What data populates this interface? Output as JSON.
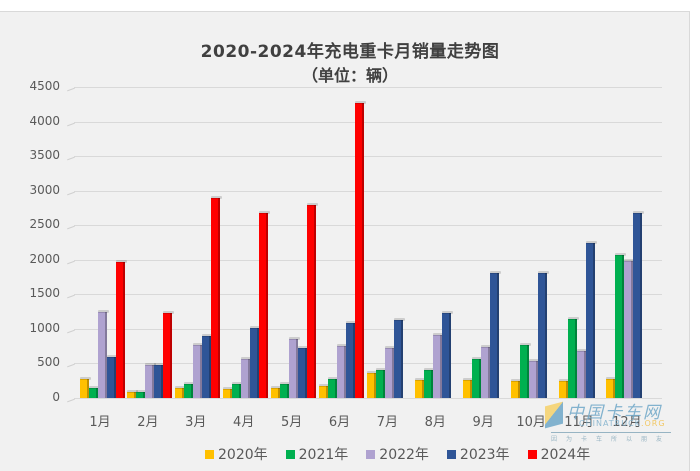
{
  "chart_data": {
    "type": "bar",
    "title": "2020-2024年充电重卡月销量走势图",
    "subtitle": "（单位：辆）",
    "xlabel": "",
    "ylabel": "",
    "ylim": [
      0,
      4500
    ],
    "yticks": [
      "0",
      "500",
      "1000",
      "1500",
      "2000",
      "2500",
      "3000",
      "3500",
      "4000",
      "4500"
    ],
    "grid": true,
    "legend_position": "bottom",
    "categories": [
      "1月",
      "2月",
      "3月",
      "4月",
      "5月",
      "6月",
      "7月",
      "8月",
      "9月",
      "10月",
      "11月",
      "12月"
    ],
    "series": [
      {
        "name": "2020年",
        "color": "#FFC000",
        "values": [
          270,
          90,
          140,
          130,
          150,
          170,
          360,
          260,
          260,
          240,
          250,
          280
        ]
      },
      {
        "name": "2021年",
        "color": "#00B050",
        "values": [
          150,
          90,
          200,
          200,
          200,
          270,
          400,
          400,
          570,
          760,
          1150,
          2070
        ]
      },
      {
        "name": "2022年",
        "color": "#AFA2D0",
        "values": [
          1240,
          480,
          760,
          560,
          860,
          750,
          720,
          910,
          740,
          530,
          680,
          1980
        ]
      },
      {
        "name": "2023年",
        "color": "#2F5597",
        "values": [
          600,
          480,
          890,
          1010,
          720,
          1080,
          1130,
          1230,
          1810,
          1810,
          2240,
          2680
        ]
      },
      {
        "name": "2024年",
        "color": "#FF0000",
        "values": [
          1970,
          1230,
          2900,
          2670,
          2790,
          4270,
          null,
          null,
          null,
          null,
          null,
          null
        ]
      }
    ]
  },
  "watermark": {
    "cn": "中国卡车网",
    "en_prefix": "CHINATRUCK",
    "en_suffix": ".ORG",
    "slogan": "因为卡车所以朋友"
  }
}
